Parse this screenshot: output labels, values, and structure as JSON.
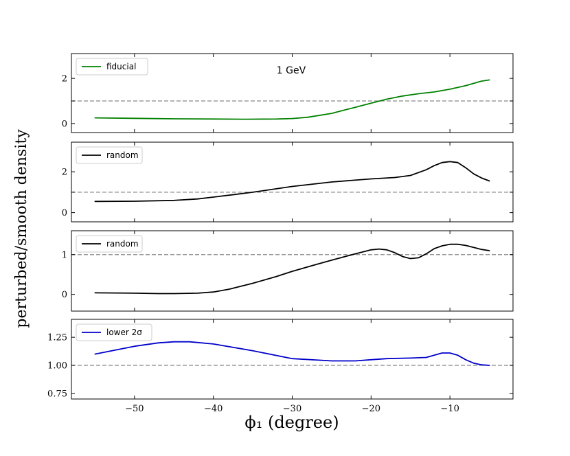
{
  "figure": {
    "ylabel": "perturbed/smooth density",
    "xlabel": "ϕ₁ (degree)",
    "x_ticks": [
      -50,
      -40,
      -30,
      -20,
      -10
    ],
    "x_tick_labels": [
      "−50",
      "−40",
      "−30",
      "−20",
      "−10"
    ]
  },
  "chart_data": [
    {
      "type": "line",
      "title": "",
      "annotation": "1 GeV",
      "legend": "fiducial",
      "color": "#008000",
      "xlim": [
        -58,
        -2
      ],
      "ylim": [
        -0.4,
        3.1
      ],
      "ref_line": 1,
      "y_ticks": [
        0,
        1,
        2
      ],
      "y_tick_labels": [
        "0",
        "",
        "2"
      ],
      "x": [
        -55,
        -50,
        -45,
        -40,
        -36,
        -32,
        -30,
        -28,
        -25,
        -22,
        -20,
        -18,
        -16,
        -14,
        -12,
        -10,
        -8,
        -6,
        -5
      ],
      "y": [
        0.25,
        0.23,
        0.21,
        0.2,
        0.19,
        0.2,
        0.22,
        0.28,
        0.45,
        0.72,
        0.9,
        1.08,
        1.22,
        1.32,
        1.4,
        1.52,
        1.68,
        1.88,
        1.93
      ]
    },
    {
      "type": "line",
      "title": "",
      "legend": "random",
      "color": "#000000",
      "xlim": [
        -58,
        -2
      ],
      "ylim": [
        -0.45,
        3.45
      ],
      "ref_line": 1,
      "y_ticks": [
        0,
        1,
        2
      ],
      "y_tick_labels": [
        "0",
        "",
        "2"
      ],
      "x": [
        -55,
        -50,
        -45,
        -42,
        -40,
        -37,
        -35,
        -30,
        -25,
        -20,
        -17,
        -15,
        -13,
        -12,
        -11,
        -10,
        -9,
        -8,
        -7,
        -6,
        -5
      ],
      "y": [
        0.55,
        0.56,
        0.6,
        0.67,
        0.76,
        0.9,
        1.0,
        1.28,
        1.5,
        1.65,
        1.72,
        1.82,
        2.1,
        2.3,
        2.45,
        2.5,
        2.45,
        2.2,
        1.9,
        1.7,
        1.55
      ]
    },
    {
      "type": "line",
      "title": "",
      "legend": "random",
      "color": "#000000",
      "xlim": [
        -58,
        -2
      ],
      "ylim": [
        -0.42,
        1.6
      ],
      "ref_line": 1,
      "y_ticks": [
        0,
        1
      ],
      "y_tick_labels": [
        "0",
        "1"
      ],
      "x": [
        -55,
        -50,
        -47,
        -45,
        -42,
        -40,
        -38,
        -35,
        -32,
        -30,
        -27,
        -25,
        -22,
        -20,
        -19,
        -18,
        -17,
        -16,
        -15,
        -14,
        -13,
        -12,
        -11,
        -10,
        -9,
        -8,
        -7,
        -6,
        -5
      ],
      "y": [
        0.04,
        0.03,
        0.02,
        0.02,
        0.03,
        0.06,
        0.13,
        0.28,
        0.45,
        0.58,
        0.75,
        0.86,
        1.02,
        1.12,
        1.14,
        1.12,
        1.05,
        0.95,
        0.9,
        0.92,
        1.02,
        1.15,
        1.22,
        1.26,
        1.26,
        1.23,
        1.18,
        1.13,
        1.1
      ]
    },
    {
      "type": "line",
      "title": "",
      "legend": "lower 2σ",
      "color": "#0000cc",
      "xlim": [
        -58,
        -2
      ],
      "ylim": [
        0.7,
        1.41
      ],
      "ref_line": 1,
      "y_ticks": [
        0.75,
        1.0,
        1.25
      ],
      "y_tick_labels": [
        "0.75",
        "1.00",
        "1.25"
      ],
      "x": [
        -55,
        -50,
        -47,
        -45,
        -43,
        -40,
        -35,
        -30,
        -25,
        -22,
        -20,
        -18,
        -15,
        -13,
        -12,
        -11,
        -10,
        -9,
        -8,
        -7,
        -6,
        -5
      ],
      "y": [
        1.1,
        1.17,
        1.2,
        1.21,
        1.21,
        1.19,
        1.13,
        1.06,
        1.04,
        1.04,
        1.05,
        1.06,
        1.065,
        1.07,
        1.09,
        1.11,
        1.11,
        1.09,
        1.05,
        1.02,
        1.005,
        1.0
      ]
    }
  ]
}
